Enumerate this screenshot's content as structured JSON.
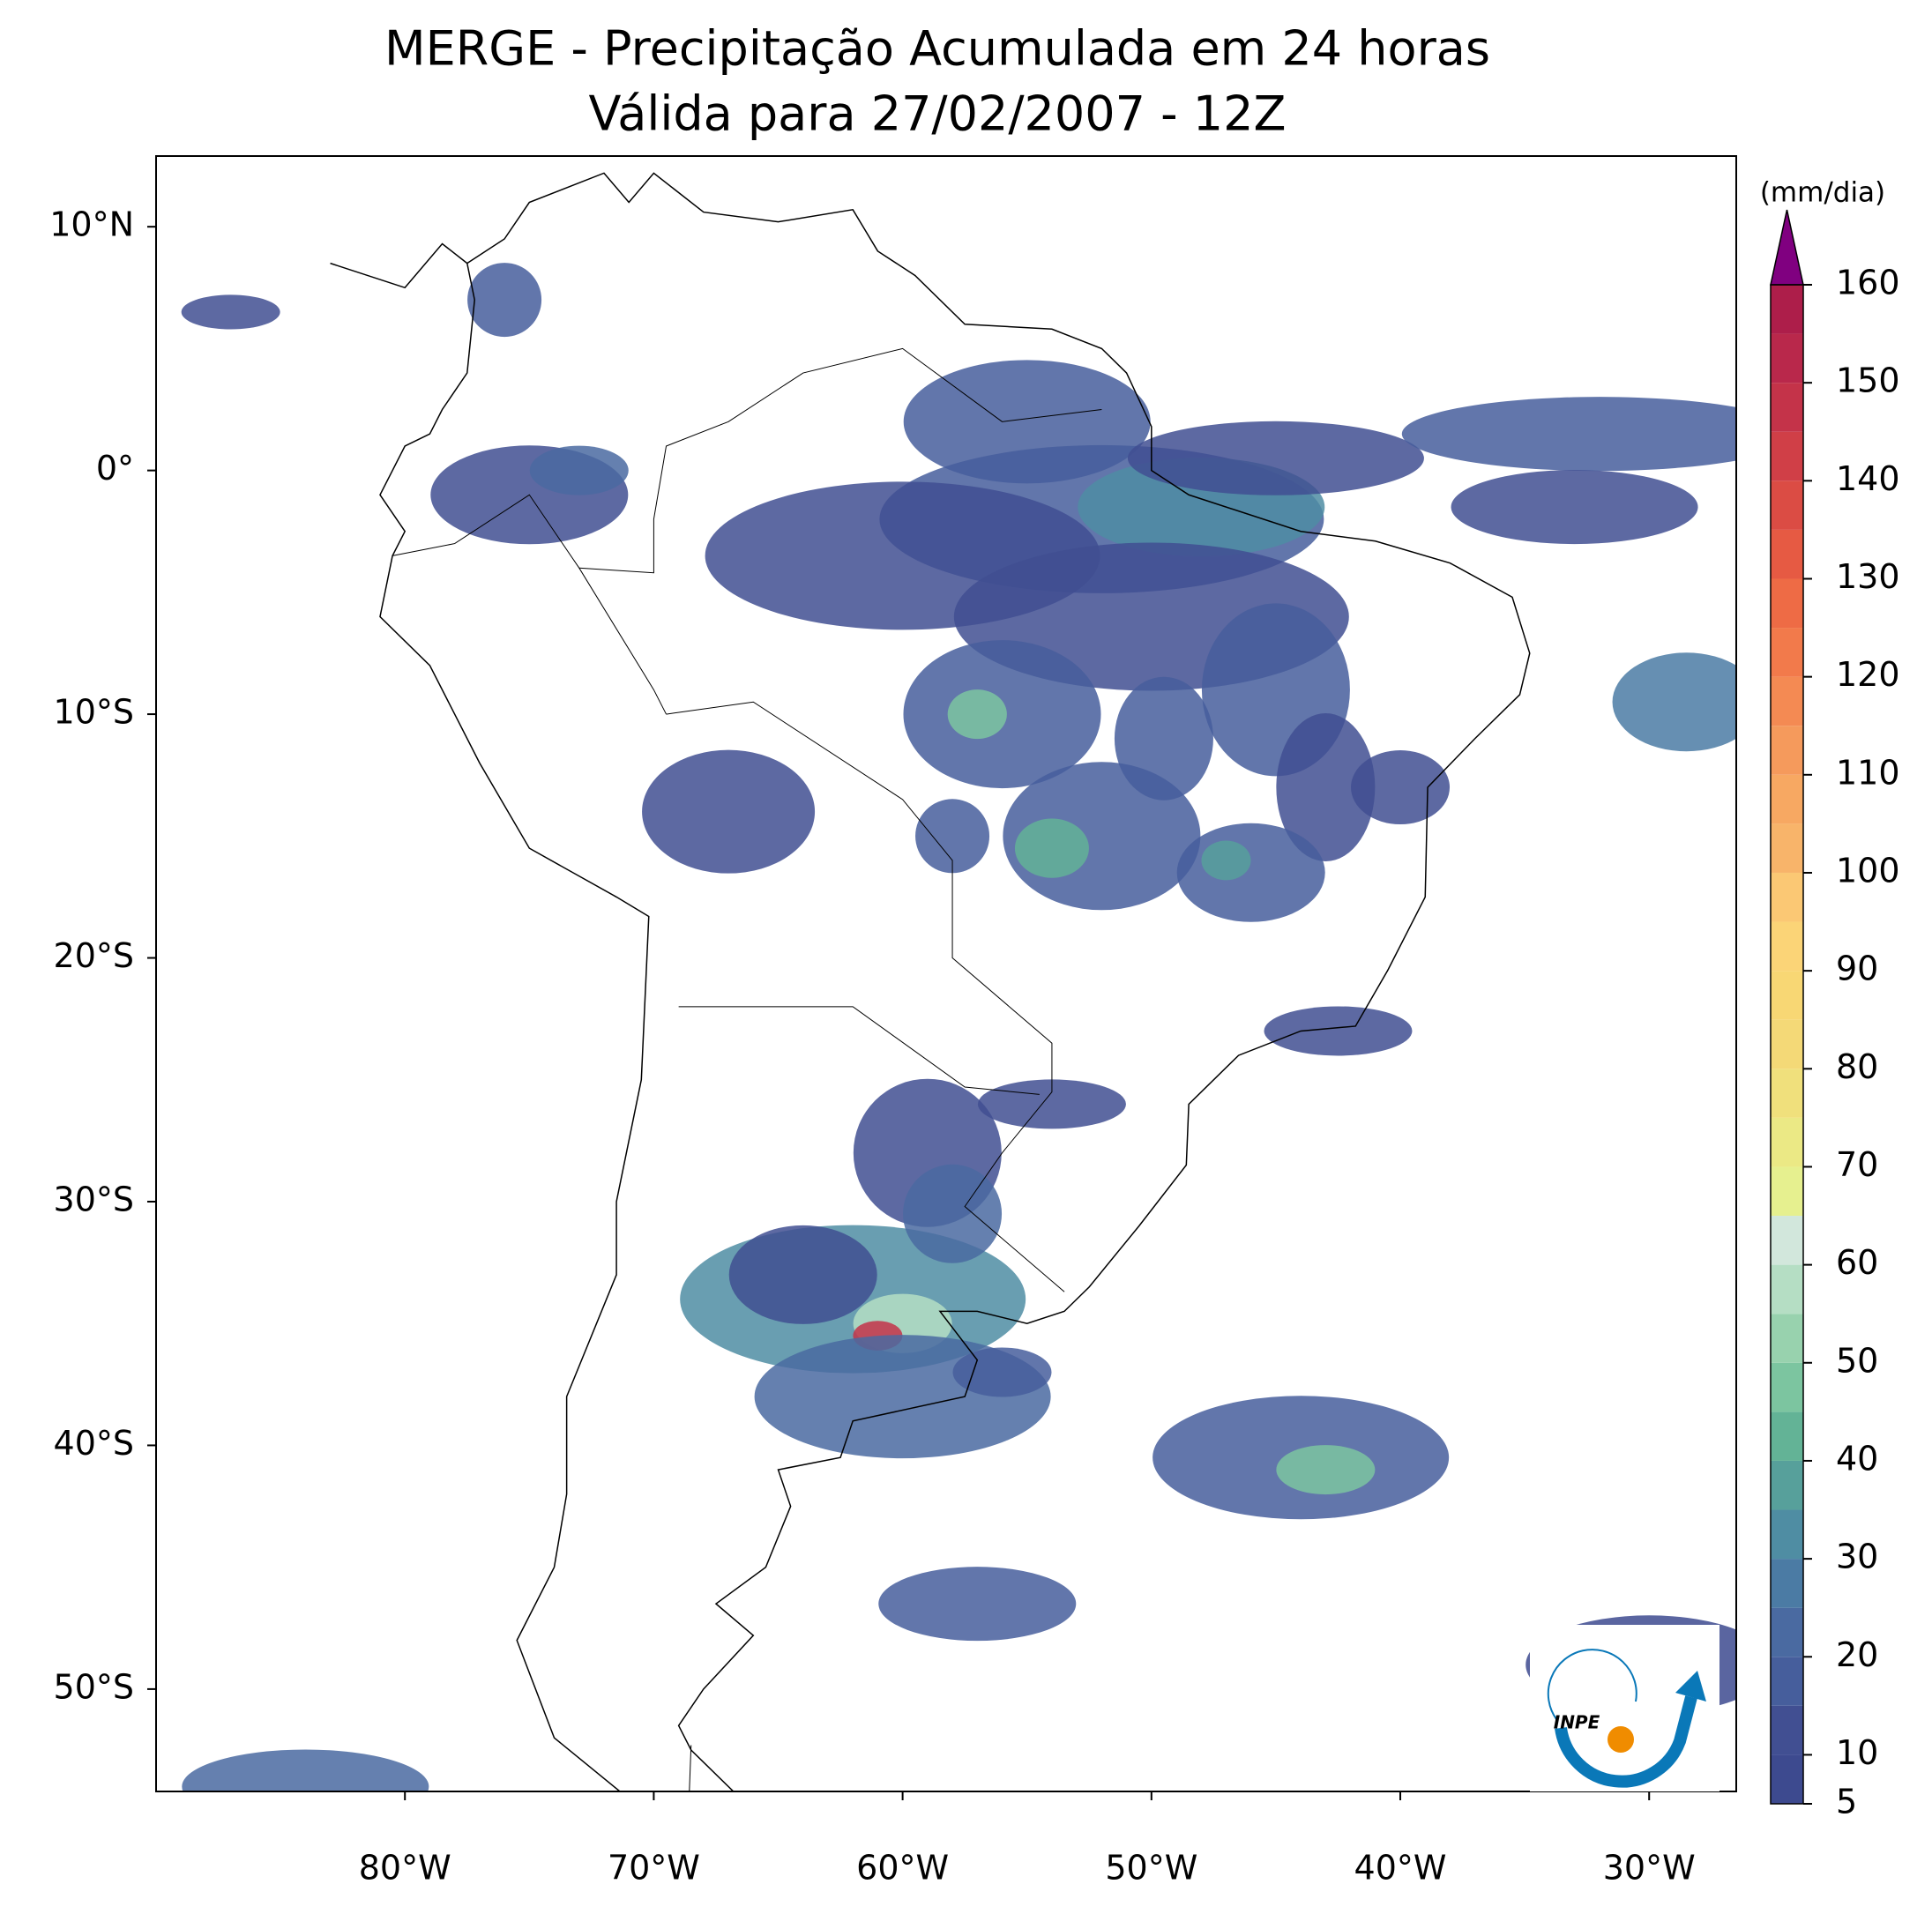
{
  "title": [
    "MERGE - Precipitação Acumulada em 24 horas",
    "Válida para 27/02/2007 - 12Z"
  ],
  "map": {
    "xlim": [
      -90,
      -26.5
    ],
    "ylim": [
      -54.2,
      12.9
    ],
    "xticks": [
      {
        "value": -80,
        "label": "80°W"
      },
      {
        "value": -70,
        "label": "70°W"
      },
      {
        "value": -60,
        "label": "60°W"
      },
      {
        "value": -50,
        "label": "50°W"
      },
      {
        "value": -40,
        "label": "40°W"
      },
      {
        "value": -30,
        "label": "30°W"
      }
    ],
    "yticks": [
      {
        "value": 10,
        "label": "10°N"
      },
      {
        "value": 0,
        "label": "0°"
      },
      {
        "value": -10,
        "label": "10°S"
      },
      {
        "value": -20,
        "label": "20°S"
      },
      {
        "value": -30,
        "label": "30°S"
      },
      {
        "value": -40,
        "label": "40°S"
      },
      {
        "value": -50,
        "label": "50°S"
      }
    ]
  },
  "colorbar": {
    "label": "(mm/dia)",
    "ylim": [
      5,
      160
    ],
    "ticks": [
      5,
      10,
      20,
      30,
      40,
      50,
      60,
      70,
      80,
      90,
      100,
      110,
      120,
      130,
      140,
      150,
      160
    ],
    "levels": [
      5,
      10,
      15,
      20,
      25,
      30,
      35,
      40,
      45,
      50,
      55,
      60,
      65,
      70,
      75,
      80,
      85,
      90,
      95,
      100,
      105,
      110,
      115,
      120,
      125,
      130,
      135,
      140,
      145,
      150,
      155,
      160
    ],
    "colors": [
      "#3d4a8f",
      "#414f92",
      "#465e9c",
      "#4a6aa1",
      "#4b7ba4",
      "#4f8da3",
      "#57a09b",
      "#63b396",
      "#7cc5a0",
      "#98d2ae",
      "#b5dec4",
      "#d2e7dc",
      "#e6f08f",
      "#ebe985",
      "#f0e07c",
      "#f4d977",
      "#f8d774",
      "#fbd477",
      "#fbc874",
      "#f8b46a",
      "#f7a862",
      "#f59a5c",
      "#f48a53",
      "#f27a4b",
      "#ee6b45",
      "#e65a43",
      "#db4c44",
      "#d03f47",
      "#c43349",
      "#b9284b",
      "#ad1e4a"
    ],
    "extend_color": "#800080"
  },
  "logo": "INPE"
}
